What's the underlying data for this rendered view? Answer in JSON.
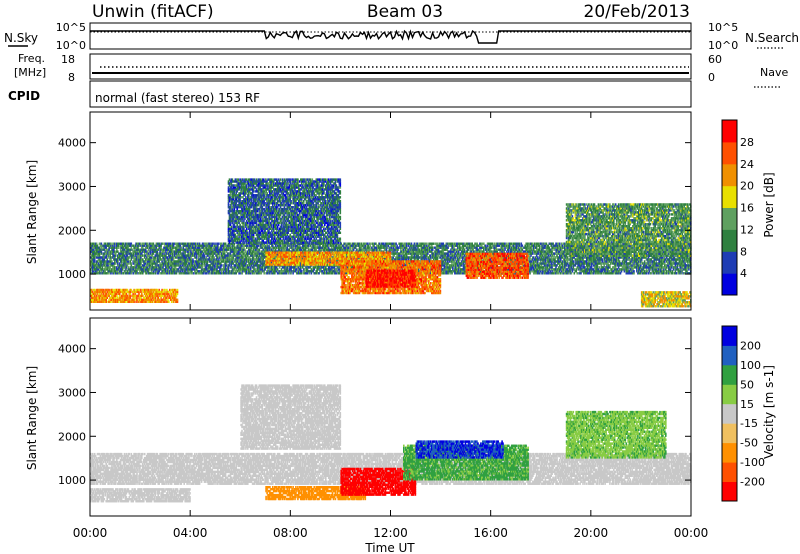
{
  "header": {
    "station": "Unwin (fitACF)",
    "beam": "Beam 03",
    "date": "20/Feb/2013"
  },
  "noise_panel": {
    "left_label": "N.Sky",
    "right_label": "N.Search",
    "ticks": [
      "10^5",
      "10^0"
    ]
  },
  "freq_panel": {
    "left_label_1": "Freq.",
    "left_label_2": "[MHz]",
    "left_ticks": [
      "18",
      "8"
    ],
    "right_label": "Nave",
    "right_ticks": [
      "60",
      "0"
    ]
  },
  "cpid_panel": {
    "label": "CPID",
    "text": "normal (fast stereo) 153 RF"
  },
  "colors": {
    "power_scale": [
      "#0000e0",
      "#1e3cb4",
      "#2f8040",
      "#5fa060",
      "#e8e000",
      "#f09000",
      "#ff5000",
      "#ff0000"
    ],
    "velocity_scale": [
      "#ff0000",
      "#ff5000",
      "#ff9000",
      "#f0c060",
      "#c8c8c8",
      "#88cc44",
      "#30a040",
      "#2060c0",
      "#0000e0"
    ],
    "ground_scatter": "#c8c8c8"
  },
  "chart_data": [
    {
      "type": "heatmap",
      "name": "power",
      "ylabel": "Slant Range [km]",
      "y_ticks": [
        "1000",
        "2000",
        "3000",
        "4000"
      ],
      "ylim": [
        180,
        4700
      ],
      "colorbar": {
        "label": "Power [dB]",
        "ticks": [
          "4",
          "8",
          "12",
          "16",
          "20",
          "24",
          "28"
        ],
        "range": [
          0,
          32
        ]
      },
      "x_ticks": [
        "00:00",
        "04:00",
        "08:00",
        "12:00",
        "16:00",
        "20:00",
        "00:00"
      ],
      "xlabel": "",
      "scatter_regions": [
        {
          "t_start": 0.0,
          "t_end": 24.0,
          "r_low": 1000,
          "r_high": 1700,
          "power": 10
        },
        {
          "t_start": 0.0,
          "t_end": 3.5,
          "r_low": 350,
          "r_high": 650,
          "power": 22
        },
        {
          "t_start": 5.5,
          "t_end": 10.0,
          "r_low": 1700,
          "r_high": 3200,
          "power": 8
        },
        {
          "t_start": 7.0,
          "t_end": 12.0,
          "r_low": 1200,
          "r_high": 1500,
          "power": 22
        },
        {
          "t_start": 10.0,
          "t_end": 14.0,
          "r_low": 550,
          "r_high": 1300,
          "power": 24
        },
        {
          "t_start": 11.0,
          "t_end": 13.0,
          "r_low": 700,
          "r_high": 1100,
          "power": 30
        },
        {
          "t_start": 15.0,
          "t_end": 17.5,
          "r_low": 900,
          "r_high": 1500,
          "power": 26
        },
        {
          "t_start": 19.0,
          "t_end": 24.0,
          "r_low": 1400,
          "r_high": 2600,
          "power": 12
        },
        {
          "t_start": 22.0,
          "t_end": 24.0,
          "r_low": 250,
          "r_high": 600,
          "power": 18
        }
      ]
    },
    {
      "type": "heatmap",
      "name": "velocity",
      "ylabel": "Slant Range [km]",
      "y_ticks": [
        "1000",
        "2000",
        "3000",
        "4000"
      ],
      "ylim": [
        180,
        4700
      ],
      "colorbar": {
        "label": "Velocity [m s-1]",
        "ticks": [
          "200",
          "100",
          "50",
          "15",
          "-15",
          "-50",
          "-100",
          "-200"
        ],
        "range": [
          -250,
          250
        ]
      },
      "x_ticks": [
        "00:00",
        "04:00",
        "08:00",
        "12:00",
        "16:00",
        "20:00",
        "00:00"
      ],
      "xlabel": "Time UT",
      "scatter_regions": [
        {
          "t_start": 0.0,
          "t_end": 24.0,
          "r_low": 900,
          "r_high": 1600,
          "velocity": 0
        },
        {
          "t_start": 6.0,
          "t_end": 10.0,
          "r_low": 1700,
          "r_high": 3200,
          "velocity": 0
        },
        {
          "t_start": 7.0,
          "t_end": 11.0,
          "r_low": 550,
          "r_high": 850,
          "velocity": -80
        },
        {
          "t_start": 10.0,
          "t_end": 13.0,
          "r_low": 650,
          "r_high": 1300,
          "velocity": -220
        },
        {
          "t_start": 12.5,
          "t_end": 17.5,
          "r_low": 1000,
          "r_high": 1800,
          "velocity": 60
        },
        {
          "t_start": 13.0,
          "t_end": 16.5,
          "r_low": 1500,
          "r_high": 1900,
          "velocity": 200
        },
        {
          "t_start": 19.0,
          "t_end": 23.0,
          "r_low": 1500,
          "r_high": 2600,
          "velocity": 40
        },
        {
          "t_start": 0.0,
          "t_end": 4.0,
          "r_low": 500,
          "r_high": 800,
          "velocity": 0
        }
      ]
    }
  ]
}
